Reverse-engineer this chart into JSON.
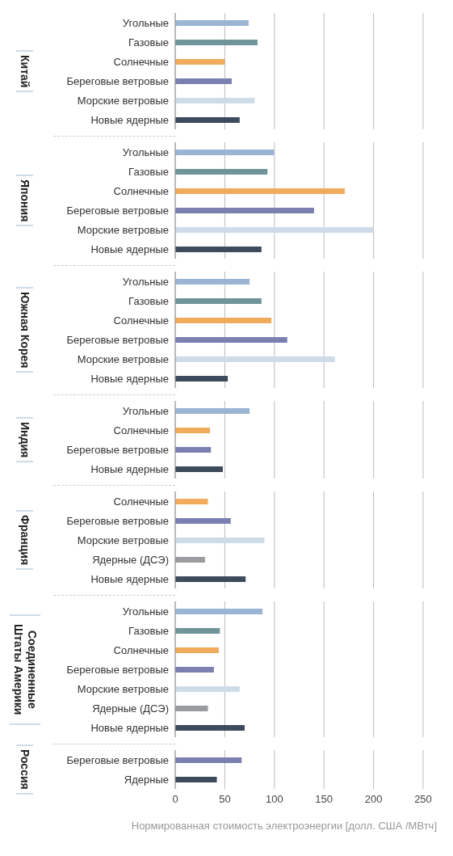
{
  "chart_data": [
    {
      "type": "bar",
      "orientation": "horizontal",
      "title": "Китай",
      "categories": [
        "Угольные",
        "Газовые",
        "Солнечные",
        "Береговые ветровые",
        "Морские ветровые",
        "Новые ядерные"
      ],
      "values": [
        74,
        83,
        50,
        57,
        80,
        65
      ],
      "colors": [
        "#9ab5d4",
        "#6f9499",
        "#f0ac5c",
        "#7b80b0",
        "#cddce8",
        "#3e4b5c"
      ],
      "xlim": [
        0,
        250
      ],
      "xticks": [
        0,
        50,
        100,
        150,
        200,
        250
      ],
      "grid": "x",
      "tick_labels": "y"
    },
    {
      "type": "bar",
      "orientation": "horizontal",
      "title": "Япония",
      "categories": [
        "Угольные",
        "Газовые",
        "Солнечные",
        "Береговые ветровые",
        "Морские ветровые",
        "Новые ядерные"
      ],
      "values": [
        100,
        93,
        171,
        140,
        200,
        87
      ],
      "colors": [
        "#9ab5d4",
        "#6f9499",
        "#f0ac5c",
        "#7b80b0",
        "#cddce8",
        "#3e4b5c"
      ],
      "xlim": [
        0,
        250
      ],
      "xticks": [
        0,
        50,
        100,
        150,
        200,
        250
      ],
      "grid": "x",
      "tick_labels": "y"
    },
    {
      "type": "bar",
      "orientation": "horizontal",
      "title": "Южная Корея",
      "categories": [
        "Угольные",
        "Газовые",
        "Солнечные",
        "Береговые ветровые",
        "Морские ветровые",
        "Новые ядерные"
      ],
      "values": [
        75,
        87,
        97,
        113,
        161,
        53
      ],
      "colors": [
        "#9ab5d4",
        "#6f9499",
        "#f0ac5c",
        "#7b80b0",
        "#cddce8",
        "#3e4b5c"
      ],
      "xlim": [
        0,
        250
      ],
      "xticks": [
        0,
        50,
        100,
        150,
        200,
        250
      ],
      "grid": "x",
      "tick_labels": "y"
    },
    {
      "type": "bar",
      "orientation": "horizontal",
      "title": "Индия",
      "categories": [
        "Угольные",
        "Солнечные",
        "Береговые ветровые",
        "Новые ядерные"
      ],
      "values": [
        75,
        35,
        36,
        48
      ],
      "colors": [
        "#9ab5d4",
        "#f0ac5c",
        "#7b80b0",
        "#3e4b5c"
      ],
      "xlim": [
        0,
        250
      ],
      "xticks": [
        0,
        50,
        100,
        150,
        200,
        250
      ],
      "grid": "x",
      "tick_labels": "y"
    },
    {
      "type": "bar",
      "orientation": "horizontal",
      "title": "Франция",
      "categories": [
        "Солнечные",
        "Береговые ветровые",
        "Морские ветровые",
        "Ядерные (ДСЭ)",
        "Новые ядерные"
      ],
      "values": [
        33,
        56,
        90,
        30,
        71
      ],
      "colors": [
        "#f0ac5c",
        "#7b80b0",
        "#cddce8",
        "#999b9e",
        "#3e4b5c"
      ],
      "xlim": [
        0,
        250
      ],
      "xticks": [
        0,
        50,
        100,
        150,
        200,
        250
      ],
      "grid": "x",
      "tick_labels": "y"
    },
    {
      "type": "bar",
      "orientation": "horizontal",
      "title": "Соединенные Штаты Америки",
      "categories": [
        "Угольные",
        "Газовые",
        "Солнечные",
        "Береговые ветровые",
        "Морские ветровые",
        "Ядерные (ДСЭ)",
        "Новые ядерные"
      ],
      "values": [
        88,
        45,
        44,
        39,
        65,
        33,
        70
      ],
      "colors": [
        "#9ab5d4",
        "#6f9499",
        "#f0ac5c",
        "#7b80b0",
        "#cddce8",
        "#999b9e",
        "#3e4b5c"
      ],
      "xlim": [
        0,
        250
      ],
      "xticks": [
        0,
        50,
        100,
        150,
        200,
        250
      ],
      "grid": "x",
      "tick_labels": "y"
    },
    {
      "type": "bar",
      "orientation": "horizontal",
      "title": "Россия",
      "categories": [
        "Береговые ветровые",
        "Ядерные"
      ],
      "values": [
        67,
        42
      ],
      "colors": [
        "#7b80b0",
        "#3e4b5c"
      ],
      "xlim": [
        0,
        250
      ],
      "xticks": [
        0,
        50,
        100,
        150,
        200,
        250
      ],
      "grid": "x",
      "xlabel": "Нормированная стоимость электроэнергии [долл. США /МВтч]"
    }
  ]
}
